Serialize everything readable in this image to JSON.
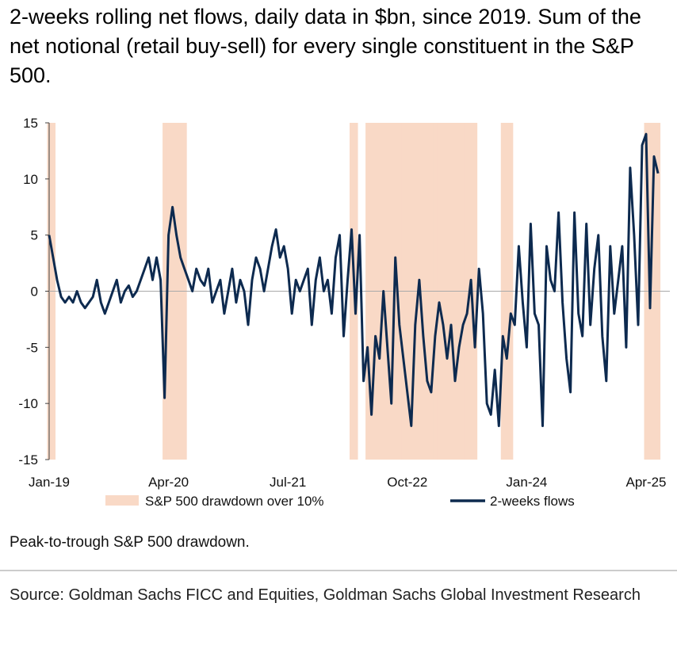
{
  "chart_data": {
    "type": "line",
    "title": "2-weeks rolling net flows, daily data in $bn, since 2019. Sum of the net notional (retail buy-sell) for every single constituent in the S&P 500.",
    "note": "Peak-to-trough S&P 500 drawdown.",
    "source": "Source: Goldman Sachs FICC and Equities, Goldman Sachs Global Investment Research",
    "categories": [
      "Jan-19",
      null,
      null,
      null,
      null,
      null,
      null,
      null,
      null,
      null,
      null,
      null,
      null,
      null,
      null,
      null,
      null,
      null,
      null,
      null,
      null,
      null,
      null,
      null,
      null,
      null,
      null,
      null,
      null,
      null,
      "Apr-20",
      null,
      null,
      null,
      null,
      null,
      null,
      null,
      null,
      null,
      null,
      null,
      null,
      null,
      null,
      null,
      null,
      null,
      null,
      null,
      null,
      null,
      null,
      null,
      null,
      null,
      null,
      null,
      null,
      null,
      "Jul-21",
      null,
      null,
      null,
      null,
      null,
      null,
      null,
      null,
      null,
      null,
      null,
      null,
      null,
      null,
      null,
      null,
      null,
      null,
      null,
      null,
      null,
      null,
      null,
      null,
      null,
      null,
      null,
      null,
      null,
      "Oct-22",
      null,
      null,
      null,
      null,
      null,
      null,
      null,
      null,
      null,
      null,
      null,
      null,
      null,
      null,
      null,
      null,
      null,
      null,
      null,
      null,
      null,
      null,
      null,
      null,
      null,
      null,
      null,
      null,
      null,
      "Jan-24",
      null,
      null,
      null,
      null,
      null,
      null,
      null,
      null,
      null,
      null,
      null,
      null,
      null,
      null,
      null,
      null,
      null,
      null,
      null,
      null,
      null,
      null,
      null,
      null,
      null,
      null,
      null,
      null,
      null,
      "Apr-25",
      null,
      null,
      null
    ],
    "series": [
      {
        "name": "S&P 500 drawdown over 10%",
        "color": "#f9d9c6",
        "type": "span",
        "values": [
          true,
          true,
          false,
          false,
          false,
          false,
          false,
          false,
          false,
          false,
          false,
          false,
          false,
          false,
          false,
          false,
          false,
          false,
          false,
          false,
          false,
          false,
          false,
          false,
          false,
          false,
          false,
          false,
          false,
          true,
          true,
          true,
          true,
          true,
          true,
          false,
          false,
          false,
          false,
          false,
          false,
          false,
          false,
          false,
          false,
          false,
          false,
          false,
          false,
          false,
          false,
          false,
          false,
          false,
          false,
          false,
          false,
          false,
          false,
          false,
          false,
          false,
          false,
          false,
          false,
          false,
          false,
          false,
          false,
          false,
          false,
          false,
          false,
          false,
          false,
          false,
          true,
          true,
          false,
          false,
          true,
          true,
          true,
          true,
          true,
          true,
          true,
          true,
          true,
          true,
          true,
          true,
          true,
          true,
          true,
          true,
          true,
          true,
          true,
          true,
          true,
          true,
          true,
          true,
          true,
          true,
          true,
          true,
          false,
          false,
          false,
          false,
          false,
          false,
          true,
          true,
          true,
          false,
          false,
          false,
          false,
          false,
          false,
          false,
          false,
          false,
          false,
          false,
          false,
          false,
          false,
          false,
          false,
          false,
          false,
          false,
          false,
          false,
          false,
          false,
          false,
          false,
          false,
          false,
          false,
          false,
          false,
          false,
          false,
          false,
          true,
          true,
          true,
          true
        ]
      },
      {
        "name": "2-weeks flows",
        "color": "#0d2a4f",
        "type": "line",
        "values": [
          5,
          3,
          1,
          -0.5,
          -1,
          -0.5,
          -1,
          0,
          -1,
          -1.5,
          -1,
          -0.5,
          1,
          -1,
          -2,
          -1,
          0,
          1,
          -1,
          0,
          0.5,
          -0.5,
          0,
          1,
          2,
          3,
          1,
          3,
          1,
          -9.5,
          5,
          7.5,
          5,
          3,
          2,
          1,
          0,
          2,
          1,
          0.5,
          2,
          -1,
          0,
          1,
          -2,
          0,
          2,
          -1,
          1,
          0,
          -3,
          1,
          3,
          2,
          0,
          2,
          4,
          5.5,
          3,
          4,
          2,
          -2,
          1,
          0,
          1,
          2,
          -3,
          1,
          3,
          0,
          1,
          -2,
          3,
          5,
          -4,
          1,
          5.5,
          -2,
          5,
          -8,
          -5,
          -11,
          -4,
          -6,
          0,
          -5,
          -10,
          3,
          -3,
          -6,
          -9,
          -12,
          -3,
          1,
          -4,
          -8,
          -9,
          -4,
          -1,
          -3,
          -6,
          -3,
          -8,
          -5,
          -3,
          -2,
          1,
          -5,
          2,
          -2,
          -10,
          -11,
          -7,
          -12,
          -4,
          -6,
          -2,
          -3,
          4,
          -1,
          -5,
          6,
          -2,
          -3,
          -12,
          4,
          1,
          0,
          7,
          -1,
          -6,
          -9,
          7,
          -2,
          -4,
          6,
          -3,
          2,
          5,
          -4,
          -8,
          4,
          -2,
          1,
          4,
          -5,
          11,
          5,
          -3,
          13,
          14,
          -1.5,
          12,
          10.5
        ]
      }
    ],
    "ylim": [
      -15,
      15
    ],
    "yticks": [
      15,
      10,
      5,
      0,
      -5,
      -10,
      -15
    ]
  }
}
